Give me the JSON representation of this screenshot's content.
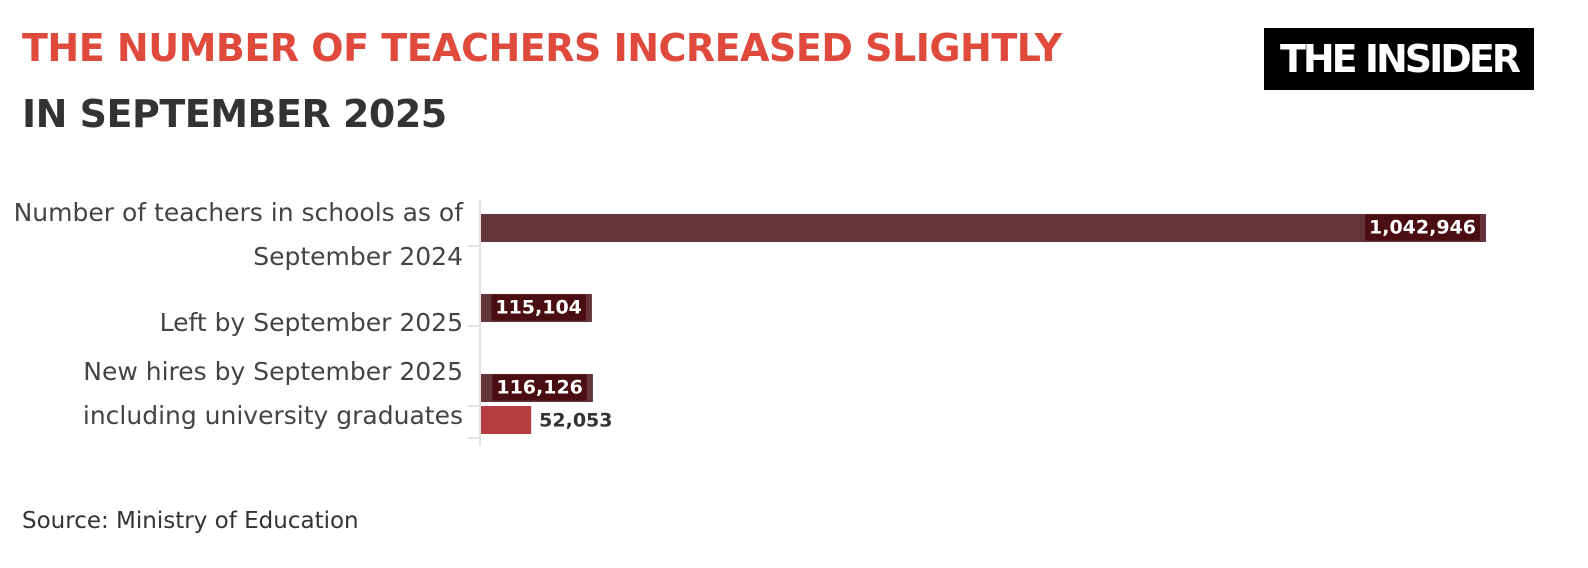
{
  "chart_data": {
    "type": "hbar",
    "title": "THE NUMBER OF TEACHERS INCREASED SLIGHTLY",
    "subtitle": "IN SEPTEMBER 2025",
    "logo": "THE INSIDER",
    "source": "Source: Ministry of Education",
    "categories": [
      "Number of teachers in schools as of September 2024",
      "Left by September 2025",
      "New hires by September 2025",
      "including university graduates"
    ],
    "values": [
      1042946,
      115104,
      116126,
      52053
    ],
    "value_labels": [
      "1,042,946",
      "115,104",
      "116,126",
      "52,053"
    ],
    "colors": [
      "#65333a",
      "#65333a",
      "#65333a",
      "#b73d42"
    ]
  }
}
